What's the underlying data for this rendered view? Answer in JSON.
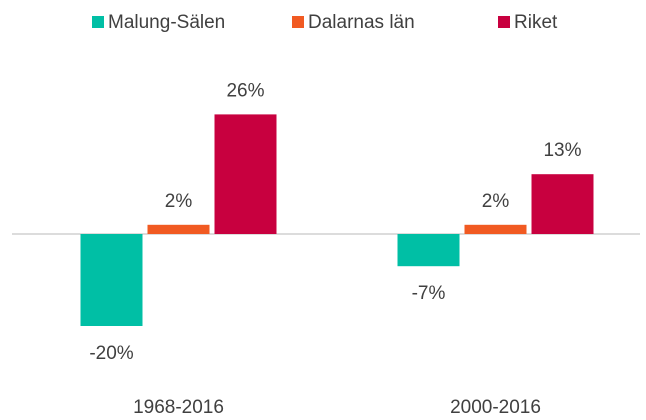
{
  "chart_data": {
    "type": "bar",
    "categories": [
      "1968-2016",
      "2000-2016"
    ],
    "series": [
      {
        "name": "Malung-Sälen",
        "color": "#00bfa5",
        "values": [
          -20,
          -7
        ],
        "value_labels": [
          "-20%",
          "-7%"
        ]
      },
      {
        "name": "Dalarnas län",
        "color": "#f15a22",
        "values": [
          2,
          2
        ],
        "value_labels": [
          "2%",
          "2%"
        ]
      },
      {
        "name": "Riket",
        "color": "#c8003f",
        "values": [
          26,
          13
        ],
        "value_labels": [
          "26%",
          "13%"
        ]
      }
    ],
    "legend": "top",
    "grid": false
  }
}
